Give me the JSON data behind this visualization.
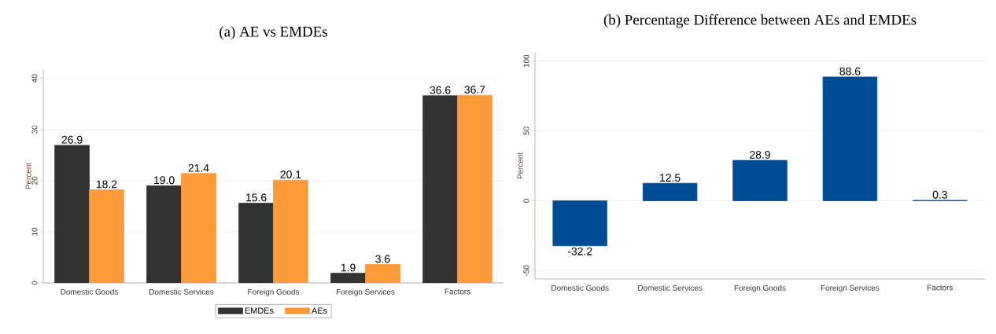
{
  "chart_data": [
    {
      "type": "bar",
      "title": "(a) AE vs EMDEs",
      "ylabel": "Percent",
      "categories": [
        "Domestic Goods",
        "Domestic Services",
        "Foreign Goods",
        "Foreign Services",
        "Factors"
      ],
      "series": [
        {
          "name": "EMDEs",
          "color": "#333333",
          "values": [
            26.9,
            19.0,
            15.6,
            1.9,
            36.6
          ],
          "value_labels": [
            "26.9",
            "19.0",
            "15.6",
            "1.9",
            "36.6"
          ]
        },
        {
          "name": "AEs",
          "color": "#fe9a37",
          "values": [
            18.2,
            21.4,
            20.1,
            3.6,
            36.7
          ],
          "value_labels": [
            "18.2",
            "21.4",
            "20.1",
            "3.6",
            "36.7"
          ]
        }
      ],
      "ylim": [
        0,
        41.8
      ],
      "yticks": [
        0,
        10,
        20,
        30,
        40
      ],
      "grid": "y",
      "legend": "bottom"
    },
    {
      "type": "bar",
      "title": "(b) Percentage Difference between AEs and EMDEs",
      "ylabel": "Percent",
      "categories": [
        "Domestic Goods",
        "Domestic Services",
        "Foreign Goods",
        "Foreign Services",
        "Factors"
      ],
      "values": [
        -32.2,
        12.5,
        28.9,
        88.6,
        0.3
      ],
      "color": "#004b96",
      "ylim": [
        -56,
        106
      ],
      "yticks": [
        -50,
        0,
        50,
        100
      ],
      "grid": "y",
      "data_labels": true
    }
  ]
}
